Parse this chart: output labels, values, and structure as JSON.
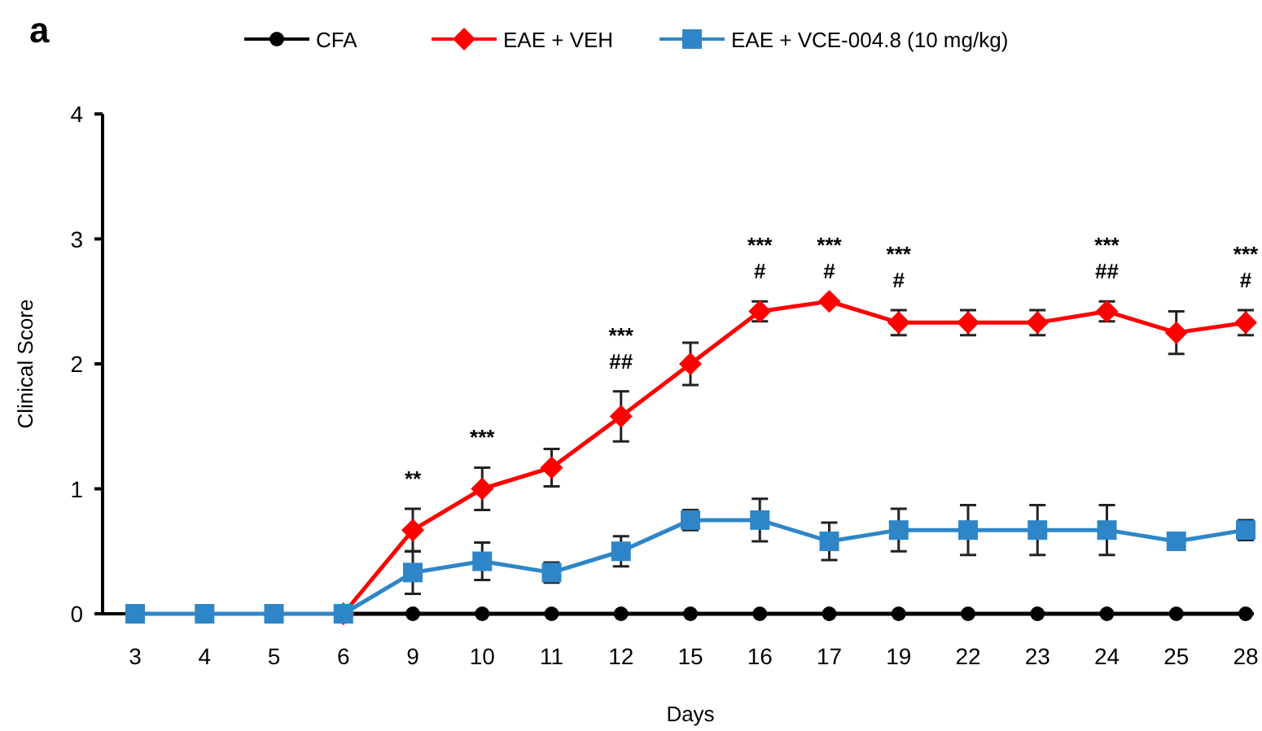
{
  "chart_data": {
    "type": "line",
    "title": "a",
    "xlabel": "Days",
    "ylabel": "Clinical Score",
    "categories": [
      "3",
      "4",
      "5",
      "6",
      "9",
      "10",
      "11",
      "12",
      "15",
      "16",
      "17",
      "19",
      "22",
      "23",
      "24",
      "25",
      "28"
    ],
    "ylim": [
      0,
      4
    ],
    "yticks": [
      0,
      1,
      2,
      3,
      4
    ],
    "grid": false,
    "legend": "top",
    "series": [
      {
        "name": "CFA",
        "color": "#000000",
        "marker": "circle",
        "values": [
          null,
          null,
          null,
          0,
          0,
          0,
          0,
          0,
          0,
          0,
          0,
          0,
          0,
          0,
          0,
          0,
          0
        ]
      },
      {
        "name": "EAE + VEH",
        "color": "#ff0000",
        "marker": "diamond",
        "values": [
          null,
          null,
          null,
          0,
          0.67,
          1.0,
          1.17,
          1.58,
          2.0,
          2.42,
          2.5,
          2.33,
          2.33,
          2.33,
          2.42,
          2.25,
          2.33
        ],
        "errors": [
          null,
          null,
          null,
          null,
          0.17,
          0.17,
          0.15,
          0.2,
          0.17,
          0.08,
          null,
          0.1,
          0.1,
          0.1,
          0.08,
          0.17,
          0.1
        ]
      },
      {
        "name": "EAE + VCE-004.8 (10 mg/kg)",
        "color": "#2e86c8",
        "marker": "square",
        "values": [
          0,
          0,
          0,
          0,
          0.33,
          0.42,
          0.33,
          0.5,
          0.75,
          0.75,
          0.58,
          0.67,
          0.67,
          0.67,
          0.67,
          0.58,
          0.67
        ],
        "errors": [
          null,
          null,
          null,
          null,
          0.17,
          0.15,
          0.08,
          0.12,
          0.08,
          0.17,
          0.15,
          0.17,
          0.2,
          0.2,
          0.2,
          null,
          0.08
        ]
      }
    ],
    "annotations": [
      "**",
      "***",
      "***",
      "##",
      "***",
      "#",
      "***",
      "#",
      "***",
      "#",
      "***",
      "##",
      "***",
      "#"
    ]
  }
}
